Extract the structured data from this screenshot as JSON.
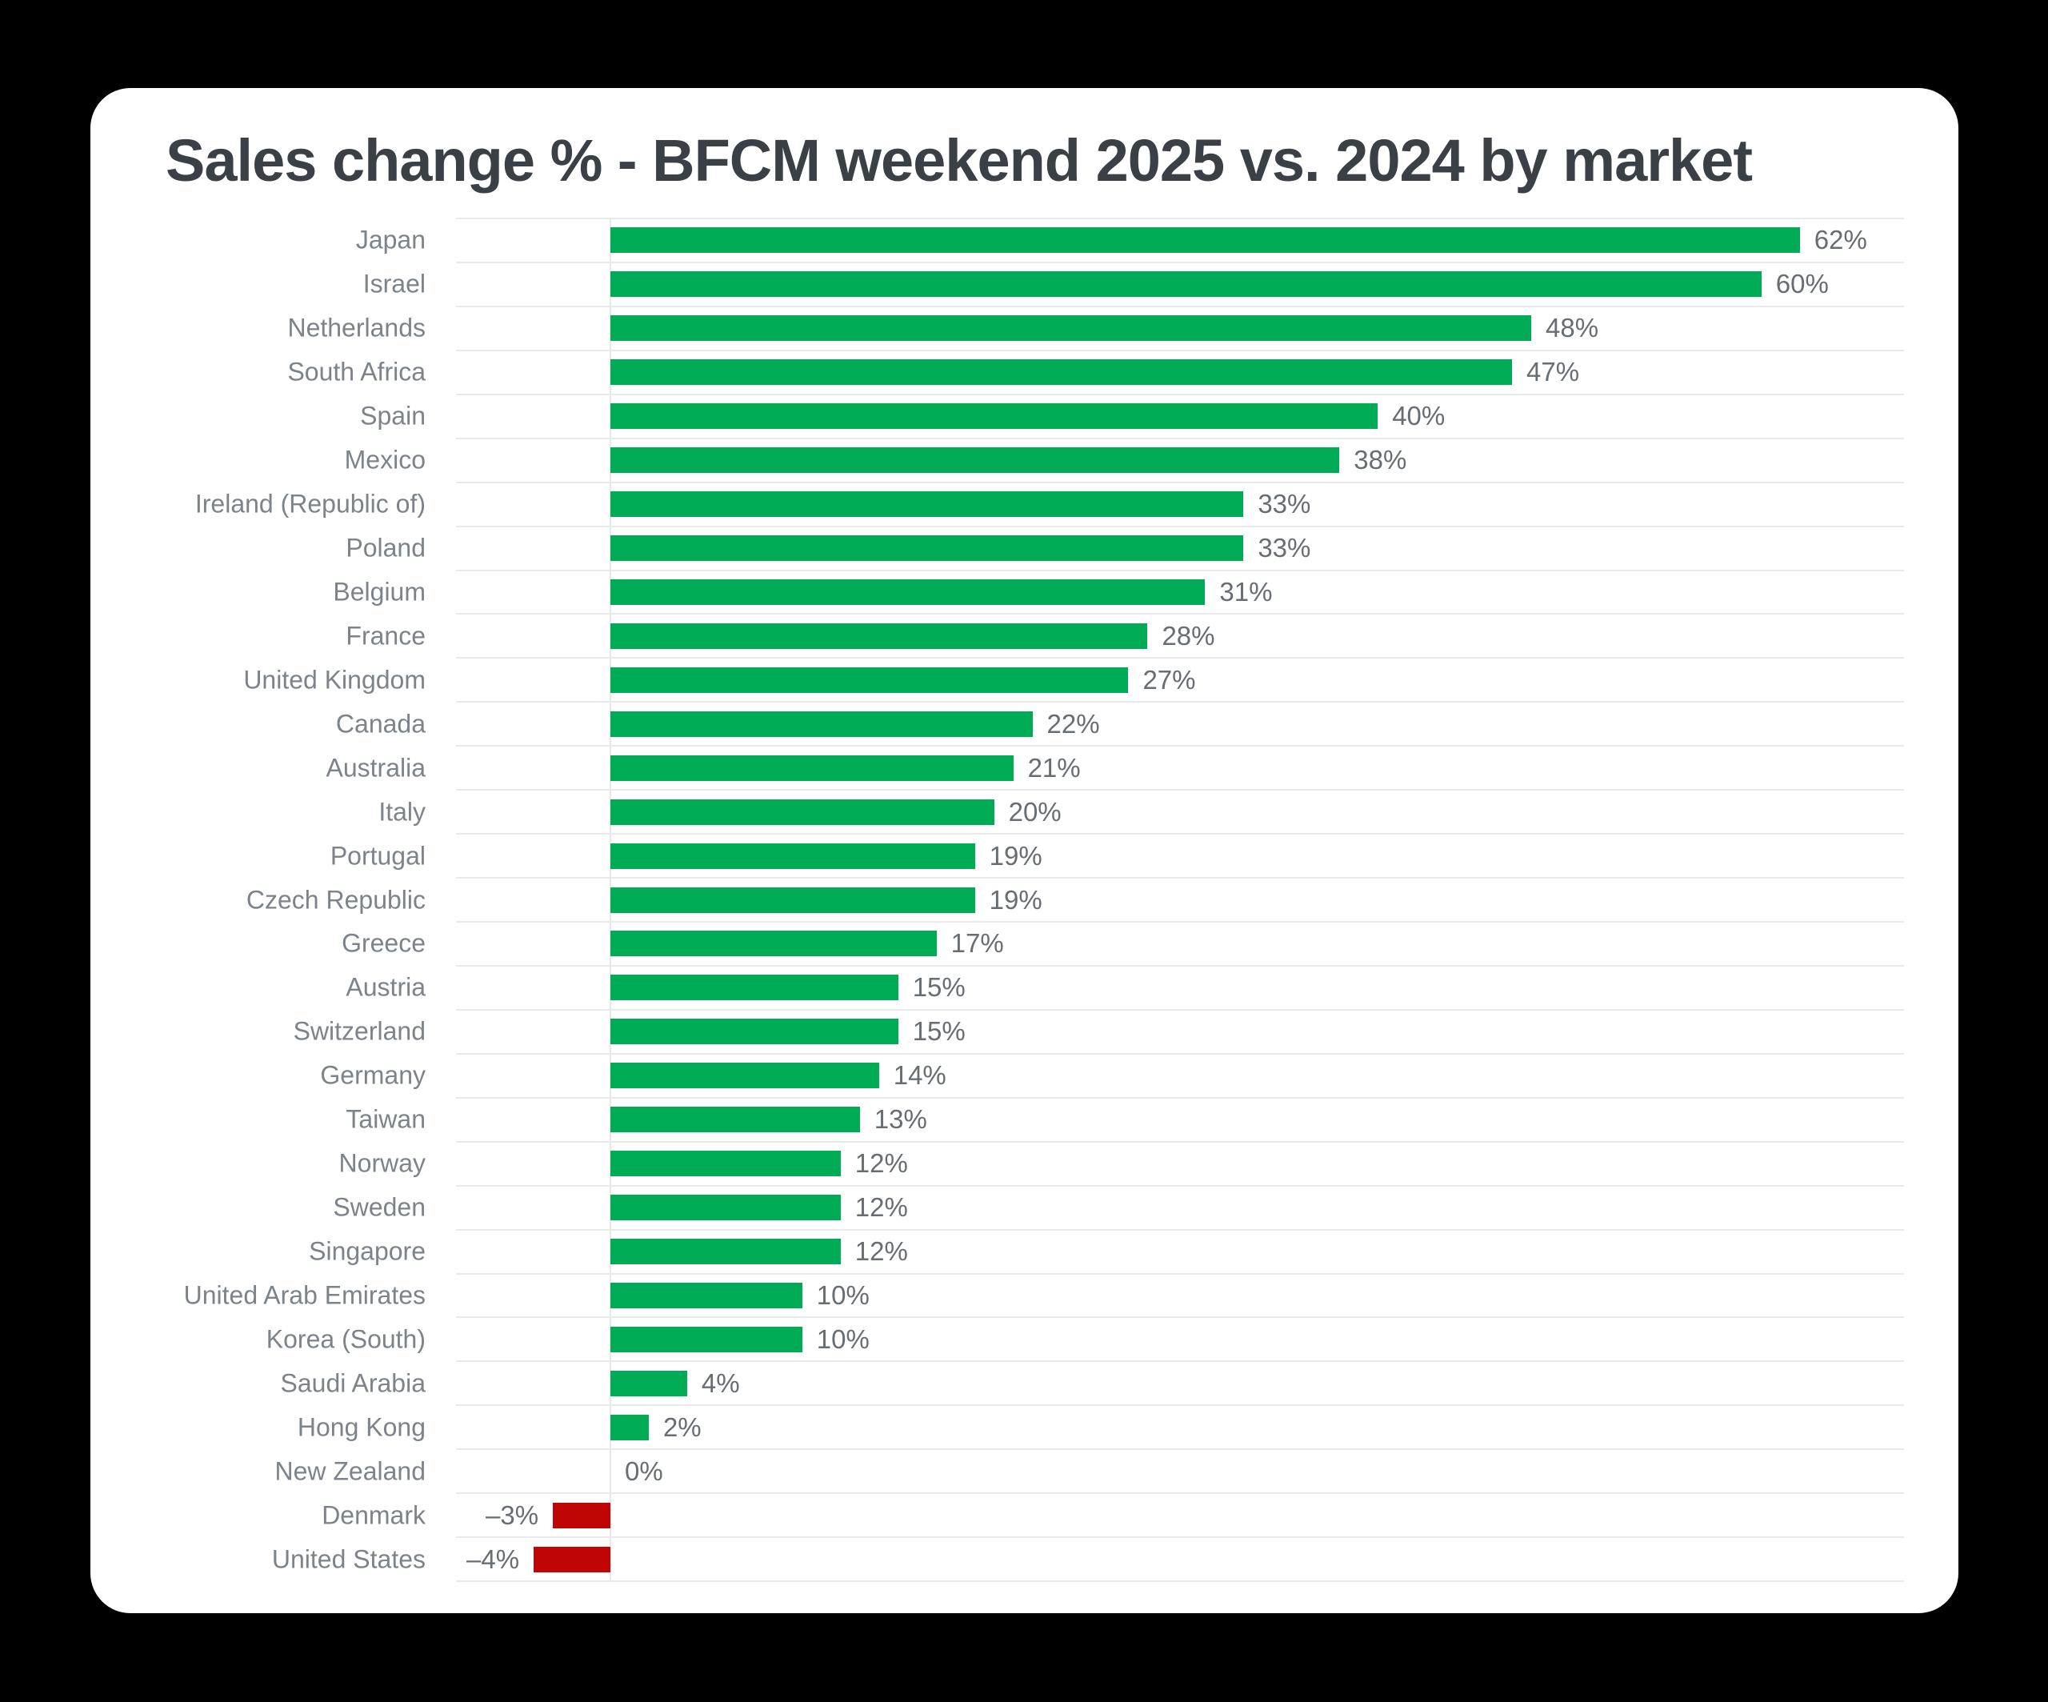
{
  "title": "Sales change % - BFCM weekend 2025 vs. 2024 by market",
  "colors": {
    "background": "#000000",
    "card": "#ffffff",
    "title_text": "#3b4046",
    "category_label_text": "#7d838a",
    "value_label_text": "#676d73",
    "gridline": "#e9eaec",
    "positive_bar": "#00ab55",
    "negative_bar": "#c00505"
  },
  "chart_data": {
    "type": "bar",
    "orientation": "horizontal",
    "title": "Sales change % - BFCM weekend 2025 vs. 2024 by market",
    "xlabel": "",
    "ylabel": "",
    "xlim": [
      -8,
      67.4
    ],
    "grid": true,
    "legend": false,
    "categories": [
      "Japan",
      "Israel",
      "Netherlands",
      "South Africa",
      "Spain",
      "Mexico",
      "Ireland (Republic of)",
      "Poland",
      "Belgium",
      "France",
      "United Kingdom",
      "Canada",
      "Australia",
      "Italy",
      "Portugal",
      "Czech Republic",
      "Greece",
      "Austria",
      "Switzerland",
      "Germany",
      "Taiwan",
      "Norway",
      "Sweden",
      "Singapore",
      "United Arab Emirates",
      "Korea (South)",
      "Saudi Arabia",
      "Hong Kong",
      "New Zealand",
      "Denmark",
      "United States"
    ],
    "values": [
      62,
      60,
      48,
      47,
      40,
      38,
      33,
      33,
      31,
      28,
      27,
      22,
      21,
      20,
      19,
      19,
      17,
      15,
      15,
      14,
      13,
      12,
      12,
      12,
      10,
      10,
      4,
      2,
      0,
      -3,
      -4
    ],
    "value_labels": [
      "62%",
      "60%",
      "48%",
      "47%",
      "40%",
      "38%",
      "33%",
      "33%",
      "31%",
      "28%",
      "27%",
      "22%",
      "21%",
      "20%",
      "19%",
      "19%",
      "17%",
      "15%",
      "15%",
      "14%",
      "13%",
      "12%",
      "12%",
      "12%",
      "10%",
      "10%",
      "4%",
      "2%",
      "0%",
      "–3%",
      "–4%"
    ]
  }
}
